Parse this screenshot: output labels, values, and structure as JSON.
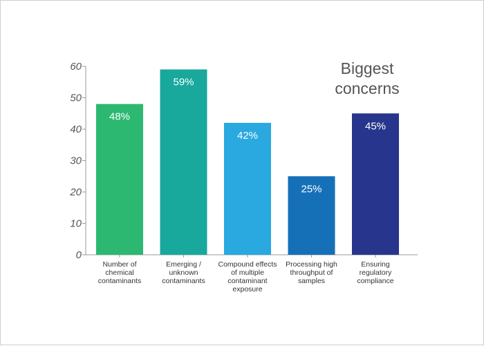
{
  "chart_data": {
    "type": "bar",
    "title": [
      "Biggest",
      "concerns"
    ],
    "categories": [
      [
        "Number of",
        "chemical",
        "contaminants"
      ],
      [
        "Emerging /",
        "unknown",
        "contaminants"
      ],
      [
        "Compound effects",
        "of multiple",
        "contaminant",
        "exposure"
      ],
      [
        "Processing high",
        "throughput of",
        "samples"
      ],
      [
        "Ensuring",
        "regulatory",
        "compliance"
      ]
    ],
    "values": [
      48,
      59,
      42,
      25,
      45
    ],
    "value_labels": [
      "48%",
      "59%",
      "42%",
      "25%",
      "45%"
    ],
    "colors": [
      "#2db872",
      "#18a89c",
      "#2aa8e0",
      "#1670b8",
      "#27368c"
    ],
    "ylim": [
      0,
      60
    ],
    "yticks": [
      0,
      10,
      20,
      30,
      40,
      50,
      60
    ],
    "xlabel": "",
    "ylabel": "",
    "grid": false,
    "legend": "none"
  }
}
